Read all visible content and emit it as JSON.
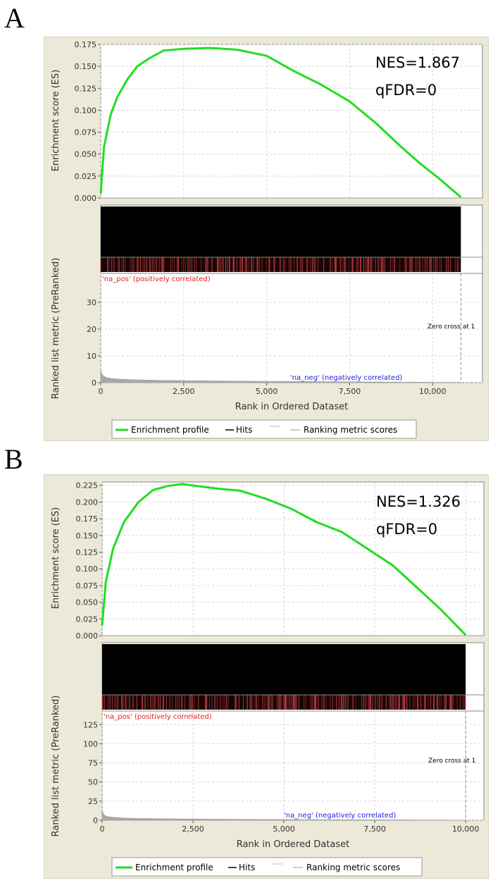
{
  "panels": [
    {
      "letter": "A",
      "stats": {
        "nes": "NES=1.867",
        "qfdr": "qFDR=0"
      }
    },
    {
      "letter": "B",
      "stats": {
        "nes": "NES=1.326",
        "qfdr": "qFDR=0"
      }
    }
  ],
  "chart_data": [
    {
      "type": "line",
      "panel": "A",
      "ylabel_top": "Enrichment score (ES)",
      "ylabel_bottom": "Ranked list metric (PreRanked)",
      "xlabel": "Rank in Ordered Dataset",
      "xlim": [
        0,
        11500
      ],
      "x_ticks": [
        "0",
        "2,500",
        "5,000",
        "7,500",
        "10,000"
      ],
      "x_tick_values": [
        0,
        2500,
        5000,
        7500,
        10000
      ],
      "es_ylim": [
        0,
        0.175
      ],
      "es_ticks": [
        "0.000",
        "0.025",
        "0.050",
        "0.075",
        "0.100",
        "0.125",
        "0.150",
        "0.175"
      ],
      "es_tick_values": [
        0,
        0.025,
        0.05,
        0.075,
        0.1,
        0.125,
        0.15,
        0.175
      ],
      "metric_ylim": [
        0,
        40
      ],
      "metric_ticks": [
        "0",
        "10",
        "20",
        "30"
      ],
      "metric_tick_values": [
        0,
        10,
        20,
        30
      ],
      "n_genes": 10850,
      "series": [
        {
          "name": "Enrichment profile",
          "color": "#22dd22",
          "x": [
            0,
            100,
            300,
            500,
            800,
            1100,
            1500,
            1900,
            2500,
            3300,
            4100,
            5000,
            5800,
            6600,
            7500,
            8300,
            9000,
            9600,
            10200,
            10850
          ],
          "y": [
            0.005,
            0.058,
            0.095,
            0.115,
            0.135,
            0.15,
            0.16,
            0.168,
            0.17,
            0.171,
            0.169,
            0.162,
            0.145,
            0.13,
            0.11,
            0.085,
            0.06,
            0.04,
            0.022,
            0.001
          ]
        },
        {
          "name": "Ranking metric scores",
          "color": "#a8a8a8",
          "x": [
            0,
            30,
            80,
            150,
            300,
            600,
            1000,
            1700,
            3000,
            5000,
            8000,
            10850
          ],
          "y": [
            5.0,
            3.5,
            2.6,
            2.0,
            1.6,
            1.3,
            1.1,
            0.9,
            0.7,
            0.5,
            0.3,
            0.1
          ]
        }
      ],
      "labels": {
        "pos": "'na_pos' (positively correlated)",
        "neg": "'na_neg' (negatively correlated)",
        "zero_cross": "Zero cross at 1"
      },
      "legend": [
        "Enrichment profile",
        "Hits",
        "Ranking metric scores"
      ]
    },
    {
      "type": "line",
      "panel": "B",
      "ylabel_top": "Enrichment score (ES)",
      "ylabel_bottom": "Ranked list metric (PreRanked)",
      "xlabel": "Rank in Ordered Dataset",
      "xlim": [
        0,
        10500
      ],
      "x_ticks": [
        "0",
        "2,500",
        "5,000",
        "7,500",
        "10,000"
      ],
      "x_tick_values": [
        0,
        2500,
        5000,
        7500,
        10000
      ],
      "es_ylim": [
        0,
        0.23
      ],
      "es_ticks": [
        "0.000",
        "0.025",
        "0.050",
        "0.075",
        "0.100",
        "0.125",
        "0.150",
        "0.175",
        "0.200",
        "0.225"
      ],
      "es_tick_values": [
        0,
        0.025,
        0.05,
        0.075,
        0.1,
        0.125,
        0.15,
        0.175,
        0.2,
        0.225
      ],
      "metric_ylim": [
        0,
        140
      ],
      "metric_ticks": [
        "0",
        "25",
        "50",
        "75",
        "100",
        "125"
      ],
      "metric_tick_values": [
        0,
        25,
        50,
        75,
        100,
        125
      ],
      "n_genes": 10000,
      "series": [
        {
          "name": "Enrichment profile",
          "color": "#22dd22",
          "x": [
            0,
            100,
            300,
            600,
            1000,
            1400,
            1800,
            2200,
            2600,
            3200,
            3800,
            4500,
            5200,
            5900,
            6600,
            7300,
            8000,
            8700,
            9300,
            10000
          ],
          "y": [
            0.015,
            0.08,
            0.13,
            0.17,
            0.2,
            0.218,
            0.224,
            0.227,
            0.224,
            0.22,
            0.217,
            0.205,
            0.19,
            0.17,
            0.155,
            0.13,
            0.105,
            0.07,
            0.04,
            0.001
          ]
        },
        {
          "name": "Ranking metric scores",
          "color": "#a8a8a8",
          "x": [
            0,
            30,
            80,
            150,
            300,
            600,
            1000,
            1700,
            3000,
            5000,
            8000,
            10000
          ],
          "y": [
            15,
            9,
            6,
            5,
            4,
            3,
            2.5,
            2,
            1.5,
            1,
            0.6,
            0.2
          ]
        }
      ],
      "labels": {
        "pos": "'na_pos' (positively correlated)",
        "neg": "'na_neg' (negatively correlated)",
        "zero_cross": "Zero cross at 1"
      },
      "legend": [
        "Enrichment profile",
        "Hits",
        "Ranking metric scores"
      ]
    }
  ]
}
